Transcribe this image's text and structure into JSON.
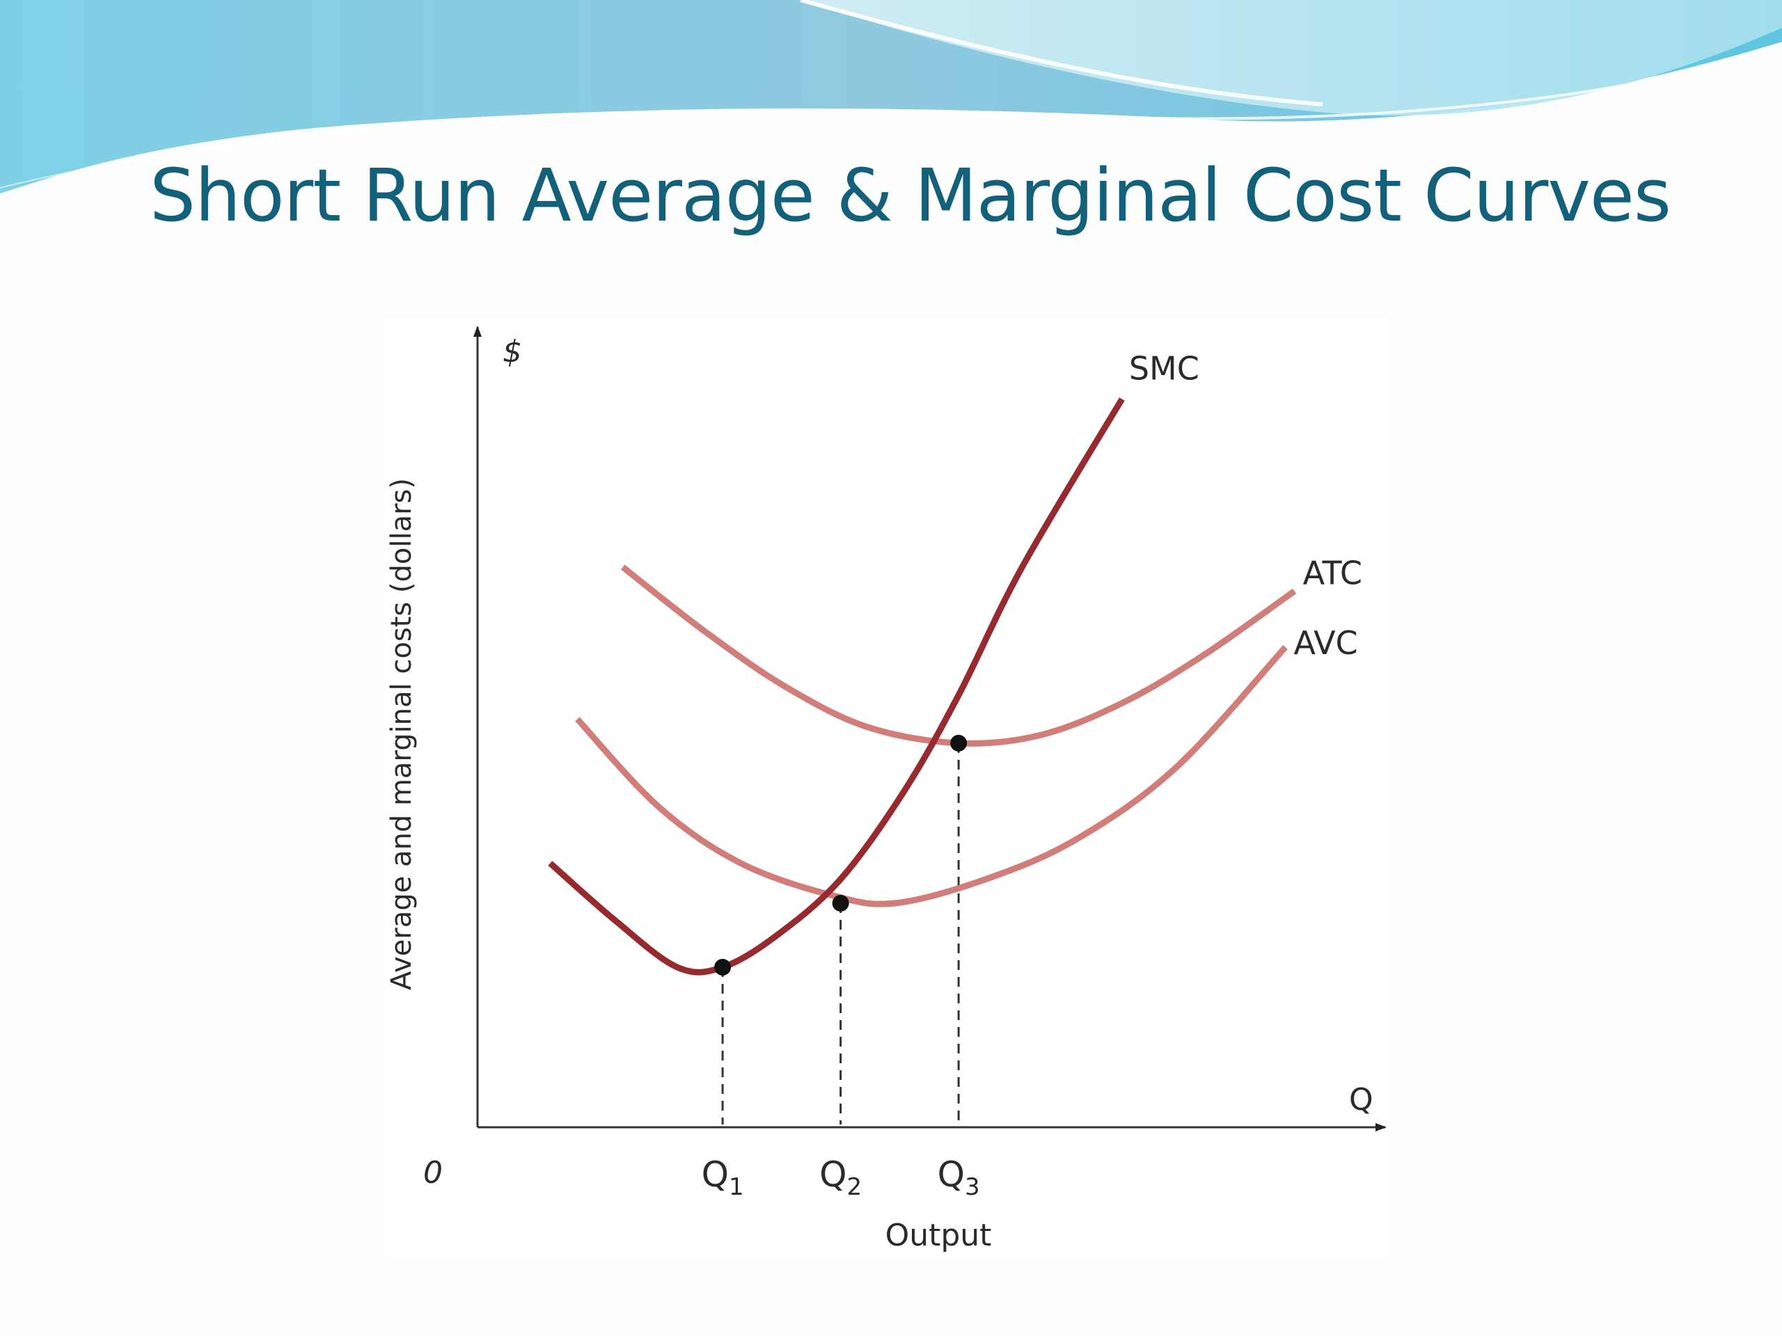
{
  "slide": {
    "title": "Short Run Average & Marginal Cost Curves",
    "colors": {
      "title": "#12607a",
      "wave_dark": "#6ec3db",
      "wave_light": "#bfe6f1"
    }
  },
  "chart_data": {
    "type": "line",
    "title": "",
    "xlabel": "Output",
    "ylabel": "Average and marginal costs (dollars)",
    "x_axis_end_label": "Q",
    "y_axis_end_label": "$",
    "origin_label": "0",
    "xlim": [
      0,
      10
    ],
    "ylim": [
      0,
      10
    ],
    "grid": false,
    "legend": "none",
    "series": [
      {
        "name": "SMC",
        "color": "#962a2e",
        "x": [
          0.8,
          1.5,
          2.2,
          2.7,
          3.3,
          4.0,
          4.7,
          5.3,
          6.0,
          7.1
        ],
        "y": [
          3.3,
          2.6,
          2.0,
          2.0,
          2.4,
          3.1,
          4.2,
          5.4,
          7.0,
          9.1
        ]
      },
      {
        "name": "ATC",
        "color": "#d17e7b",
        "x": [
          1.6,
          2.5,
          3.4,
          4.3,
          5.3,
          6.2,
          7.1,
          8.0,
          9.0
        ],
        "y": [
          7.0,
          6.2,
          5.5,
          5.0,
          4.8,
          4.9,
          5.3,
          5.9,
          6.7
        ]
      },
      {
        "name": "AVC",
        "color": "#d17e7b",
        "x": [
          1.1,
          2.0,
          2.9,
          3.9,
          4.6,
          5.6,
          6.6,
          7.7,
          8.9
        ],
        "y": [
          5.1,
          4.0,
          3.3,
          2.9,
          2.8,
          3.1,
          3.6,
          4.5,
          6.0
        ]
      }
    ],
    "points": [
      {
        "x": 2.7,
        "y": 2.0,
        "label": "Q1"
      },
      {
        "x": 4.0,
        "y": 2.8,
        "label": "Q2"
      },
      {
        "x": 5.3,
        "y": 4.8,
        "label": "Q3"
      }
    ],
    "tick_labels": [
      {
        "x": 2.7,
        "base": "Q",
        "sub": "1"
      },
      {
        "x": 4.0,
        "base": "Q",
        "sub": "2"
      },
      {
        "x": 5.3,
        "base": "Q",
        "sub": "3"
      }
    ]
  }
}
